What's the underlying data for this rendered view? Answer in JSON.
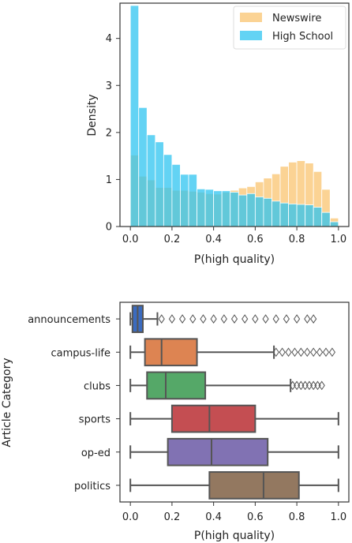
{
  "chart_data": [
    {
      "type": "histogram",
      "xlabel": "P(high quality)",
      "ylabel": "Density",
      "xlim": [
        -0.05,
        1.05
      ],
      "ylim": [
        0,
        4.75
      ],
      "xticks": [
        "0.0",
        "0.2",
        "0.4",
        "0.6",
        "0.8",
        "1.0"
      ],
      "yticks": [
        "0",
        "1",
        "2",
        "3",
        "4"
      ],
      "legend": "top-right",
      "series": [
        {
          "name": "Newswire",
          "color": "#f9b54d",
          "bin_start": 0.0,
          "bin_width": 0.04,
          "values": [
            1.52,
            1.07,
            0.99,
            0.83,
            0.83,
            0.77,
            0.77,
            0.75,
            0.73,
            0.7,
            0.69,
            0.73,
            0.77,
            0.82,
            0.85,
            0.95,
            1.03,
            1.12,
            1.28,
            1.37,
            1.4,
            1.35,
            1.17,
            0.79,
            0.18
          ]
        },
        {
          "name": "High School",
          "color": "#2fc4f0",
          "bin_start": 0.0,
          "bin_width": 0.04,
          "values": [
            4.7,
            2.53,
            1.95,
            1.8,
            1.53,
            1.32,
            1.11,
            1.11,
            0.8,
            0.79,
            0.76,
            0.76,
            0.73,
            0.67,
            0.7,
            0.63,
            0.6,
            0.54,
            0.5,
            0.48,
            0.47,
            0.46,
            0.41,
            0.3,
            0.1
          ]
        }
      ]
    },
    {
      "type": "boxplot",
      "xlabel": "P(high quality)",
      "ylabel": "Article Category",
      "xlim": [
        -0.05,
        1.05
      ],
      "xticks": [
        "0.0",
        "0.2",
        "0.4",
        "0.6",
        "0.8",
        "1.0"
      ],
      "categories": [
        "announcements",
        "campus-life",
        "clubs",
        "sports",
        "op-ed",
        "politics"
      ],
      "boxes": [
        {
          "min": 0.0,
          "q1": 0.01,
          "median": 0.035,
          "q3": 0.06,
          "max": 0.13,
          "color": "#3b6bbf",
          "outliers": [
            0.15,
            0.2,
            0.25,
            0.3,
            0.35,
            0.4,
            0.45,
            0.5,
            0.55,
            0.6,
            0.65,
            0.7,
            0.75,
            0.8,
            0.85,
            0.88
          ]
        },
        {
          "min": 0.0,
          "q1": 0.07,
          "median": 0.15,
          "q3": 0.32,
          "max": 0.69,
          "color": "#dd8452",
          "outliers": [
            0.7,
            0.73,
            0.76,
            0.79,
            0.82,
            0.85,
            0.88,
            0.91,
            0.94,
            0.97
          ]
        },
        {
          "min": 0.0,
          "q1": 0.08,
          "median": 0.17,
          "q3": 0.36,
          "max": 0.77,
          "color": "#55a868",
          "outliers": [
            0.78,
            0.8,
            0.82,
            0.84,
            0.86,
            0.88,
            0.9,
            0.92
          ]
        },
        {
          "min": 0.0,
          "q1": 0.2,
          "median": 0.38,
          "q3": 0.6,
          "max": 1.0,
          "color": "#c44e52",
          "outliers": []
        },
        {
          "min": 0.0,
          "q1": 0.18,
          "median": 0.39,
          "q3": 0.66,
          "max": 1.0,
          "color": "#8172b3",
          "outliers": []
        },
        {
          "min": 0.0,
          "q1": 0.38,
          "median": 0.64,
          "q3": 0.81,
          "max": 1.0,
          "color": "#937860",
          "outliers": []
        }
      ]
    }
  ]
}
